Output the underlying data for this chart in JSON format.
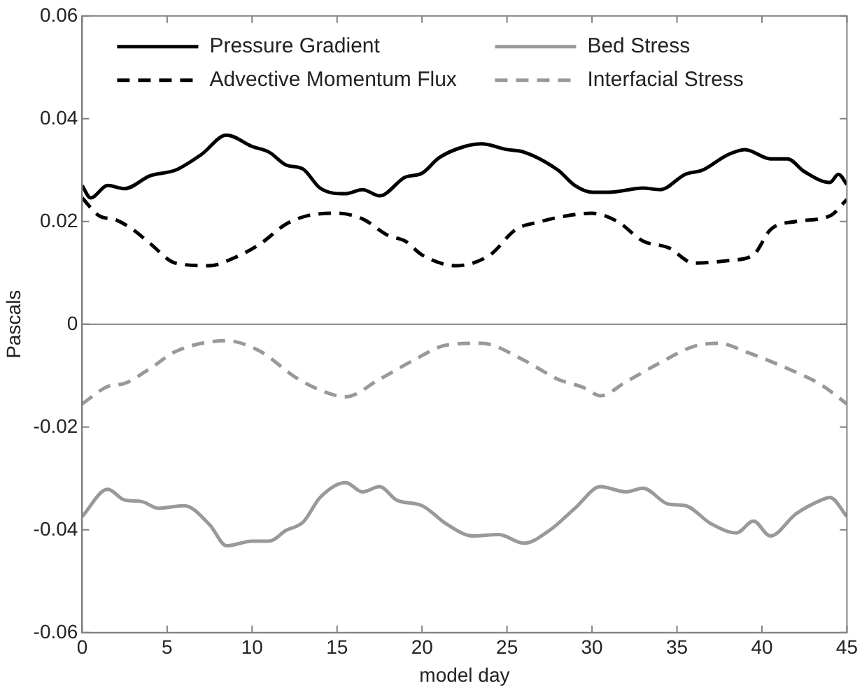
{
  "chart_data": {
    "type": "line",
    "xlabel": "model day",
    "ylabel": "Pascals",
    "xlim": [
      0,
      45
    ],
    "xticks": [
      0,
      5,
      10,
      15,
      20,
      25,
      30,
      35,
      40,
      45
    ],
    "ylim": [
      -0.06,
      0.06
    ],
    "yticks": [
      -0.06,
      -0.04,
      -0.02,
      0,
      0.02,
      0.04,
      0.06
    ],
    "grid": false,
    "legend": "top left",
    "marker": "none",
    "ref_lines": [
      {
        "axis": "y",
        "value": 0,
        "color": "#808080"
      }
    ],
    "series": [
      {
        "name": "Pressure Gradient",
        "color": "#000000",
        "line_style": "solid",
        "x": [
          0,
          0.5,
          1.5,
          2.5,
          4,
          5.5,
          7,
          8.5,
          10,
          11,
          12,
          13,
          14,
          15.5,
          16.5,
          17.5,
          19,
          20,
          21,
          22.5,
          23.5,
          25,
          26,
          28,
          29,
          30,
          31,
          33,
          34,
          35.5,
          36.5,
          38,
          39,
          40.5,
          41.5,
          42.5,
          44,
          44.5,
          45
        ],
        "values": [
          0.027,
          0.0246,
          0.027,
          0.0264,
          0.0289,
          0.03,
          0.033,
          0.0368,
          0.0346,
          0.0335,
          0.031,
          0.0302,
          0.0265,
          0.0254,
          0.0262,
          0.025,
          0.0286,
          0.0294,
          0.0324,
          0.0346,
          0.0351,
          0.034,
          0.0335,
          0.03,
          0.027,
          0.0257,
          0.0257,
          0.0265,
          0.0262,
          0.0292,
          0.03,
          0.033,
          0.034,
          0.0322,
          0.0322,
          0.0297,
          0.0276,
          0.0292,
          0.0272
        ]
      },
      {
        "name": "Advective Momentum Flux",
        "color": "#000000",
        "line_style": "dashed",
        "x": [
          0,
          1,
          2,
          3,
          4,
          5.5,
          7.5,
          9,
          10.5,
          12,
          13.5,
          15,
          16.5,
          18,
          19,
          20,
          22,
          24,
          25.5,
          27,
          28.5,
          30,
          31.5,
          33,
          34.5,
          36,
          38,
          39.5,
          40.5,
          42,
          44,
          45
        ],
        "values": [
          0.0246,
          0.0211,
          0.0203,
          0.0184,
          0.0157,
          0.0119,
          0.0114,
          0.013,
          0.0157,
          0.0195,
          0.0213,
          0.0216,
          0.0205,
          0.0173,
          0.0162,
          0.0135,
          0.0114,
          0.0135,
          0.0184,
          0.02,
          0.0211,
          0.0216,
          0.02,
          0.0162,
          0.0149,
          0.0119,
          0.0124,
          0.0135,
          0.0184,
          0.02,
          0.0211,
          0.0243
        ]
      },
      {
        "name": "Bed Stress",
        "color": "#999999",
        "line_style": "solid",
        "x": [
          0,
          1.5,
          2.5,
          3.5,
          4.5,
          6,
          7.5,
          8.5,
          10,
          11,
          12,
          13,
          14,
          15.5,
          16.5,
          17.5,
          18.5,
          20,
          21.5,
          23,
          24.5,
          26,
          27.5,
          29,
          30.5,
          32,
          33,
          34.5,
          35.5,
          37,
          38.5,
          39.5,
          40.5,
          42,
          43.5,
          44,
          45
        ],
        "values": [
          -0.0374,
          -0.0321,
          -0.0342,
          -0.0345,
          -0.0358,
          -0.0353,
          -0.039,
          -0.0431,
          -0.0422,
          -0.0422,
          -0.0401,
          -0.0385,
          -0.0337,
          -0.0308,
          -0.0326,
          -0.0316,
          -0.0342,
          -0.0353,
          -0.039,
          -0.0412,
          -0.0409,
          -0.0426,
          -0.0401,
          -0.0358,
          -0.0316,
          -0.0326,
          -0.0319,
          -0.035,
          -0.0353,
          -0.0388,
          -0.0406,
          -0.0383,
          -0.0412,
          -0.0369,
          -0.0342,
          -0.0337,
          -0.0374
        ]
      },
      {
        "name": "Interfacial Stress",
        "color": "#999999",
        "line_style": "dashed",
        "x": [
          0,
          1.5,
          2.5,
          4,
          5.5,
          8.5,
          10.5,
          12.5,
          14,
          15.5,
          17.5,
          19.5,
          21.5,
          23.5,
          26,
          28,
          29.5,
          30.5,
          32,
          34,
          36,
          37.5,
          39,
          41.5,
          43.5,
          45
        ],
        "values": [
          -0.0155,
          -0.0121,
          -0.0115,
          -0.0086,
          -0.0053,
          -0.0032,
          -0.0053,
          -0.0102,
          -0.0128,
          -0.0141,
          -0.0107,
          -0.007,
          -0.004,
          -0.0037,
          -0.007,
          -0.0107,
          -0.0123,
          -0.0139,
          -0.0112,
          -0.0075,
          -0.0043,
          -0.0037,
          -0.0053,
          -0.0086,
          -0.0118,
          -0.0155
        ]
      }
    ]
  }
}
